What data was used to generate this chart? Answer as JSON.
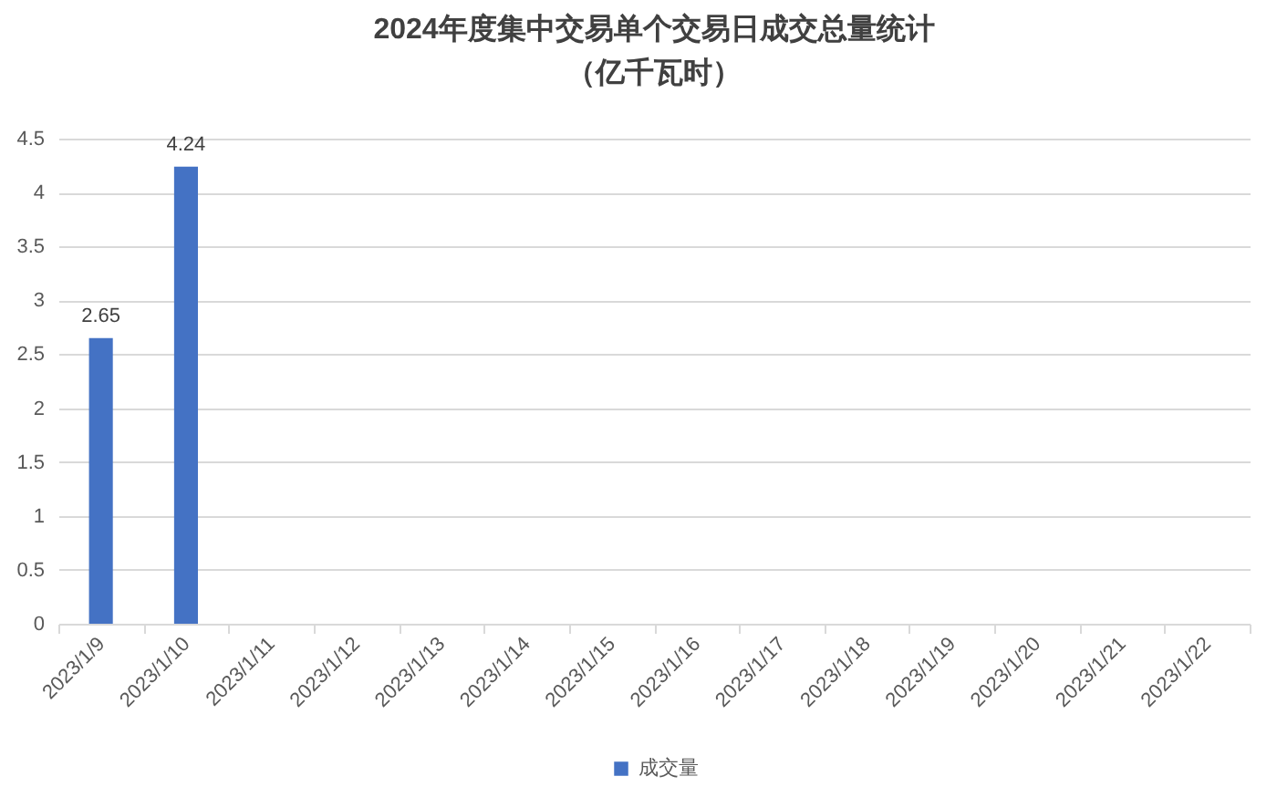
{
  "chart_data": {
    "type": "bar",
    "title": "2024年度集中交易单个交易日成交总量统计",
    "subtitle": "（亿千瓦时）",
    "categories": [
      "2023/1/9",
      "2023/1/10",
      "2023/1/11",
      "2023/1/12",
      "2023/1/13",
      "2023/1/14",
      "2023/1/15",
      "2023/1/16",
      "2023/1/17",
      "2023/1/18",
      "2023/1/19",
      "2023/1/20",
      "2023/1/21",
      "2023/1/22"
    ],
    "series": [
      {
        "name": "成交量",
        "color": "#4472c4",
        "values": [
          2.65,
          4.24,
          null,
          null,
          null,
          null,
          null,
          null,
          null,
          null,
          null,
          null,
          null,
          null
        ]
      }
    ],
    "ylim": [
      0,
      4.5
    ],
    "yticks": [
      0,
      0.5,
      1,
      1.5,
      2,
      2.5,
      3,
      3.5,
      4,
      4.5
    ],
    "grid": "y",
    "legend": "bottom",
    "data_labels": true
  }
}
